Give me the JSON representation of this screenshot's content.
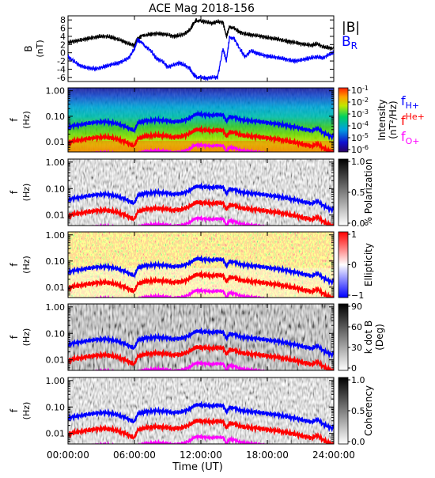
{
  "title": "ACE Mag 2018-156",
  "xlabel": "Time (UT)",
  "xticks": [
    "00:00:00",
    "06:00:00",
    "12:00:00",
    "18:00:00",
    "24:00:00"
  ],
  "colors": {
    "blue": "#0000ff",
    "red": "#ff0000",
    "magenta": "#ff00ff",
    "black": "#000000"
  },
  "chart_data": [
    {
      "type": "line",
      "panel": "magnetic-field",
      "xlim": [
        0,
        24
      ],
      "ylim": [
        -7,
        9
      ],
      "ylabel": "B",
      "yunit": "(nT)",
      "yticks": [
        "8",
        "6",
        "4",
        "2",
        "0",
        "-2",
        "-4",
        "-6"
      ],
      "legend": [
        {
          "label": "|B|",
          "color": "#000000"
        },
        {
          "label": "B",
          "sub": "R",
          "color": "#0000ff"
        }
      ],
      "series": [
        {
          "name": "|B|",
          "x": [
            0,
            0.5,
            1,
            1.5,
            2,
            2.5,
            3,
            3.5,
            4,
            4.5,
            5,
            5.5,
            6,
            6.3,
            6.6,
            7,
            7.5,
            8,
            8.5,
            9,
            9.5,
            10,
            10.5,
            11,
            11.3,
            11.6,
            12,
            12.5,
            13,
            13.5,
            14,
            14.3,
            14.6,
            15,
            15.5,
            16,
            16.5,
            17,
            17.5,
            18,
            18.5,
            19,
            19.5,
            20,
            20.5,
            21,
            21.5,
            22,
            22.5,
            23,
            23.5,
            24
          ],
          "values": [
            2.5,
            2.8,
            3.0,
            3.3,
            3.6,
            3.8,
            4.0,
            4.0,
            3.7,
            3.3,
            2.8,
            2.2,
            1.8,
            3.5,
            3.9,
            4.3,
            4.5,
            4.7,
            4.6,
            4.4,
            4.0,
            4.2,
            4.6,
            5.5,
            7.0,
            8.0,
            7.7,
            7.5,
            7.2,
            7.6,
            7.4,
            4.0,
            6.5,
            6.0,
            5.0,
            4.6,
            4.4,
            4.2,
            4.0,
            3.7,
            3.5,
            3.3,
            3.0,
            2.7,
            2.5,
            2.2,
            2.0,
            1.8,
            2.2,
            1.5,
            1.2,
            1.0
          ]
        },
        {
          "name": "B_R",
          "x": [
            0,
            0.5,
            1,
            1.5,
            2,
            2.5,
            3,
            3.5,
            4,
            4.5,
            5,
            5.5,
            6,
            6.3,
            6.6,
            7,
            7.5,
            8,
            8.5,
            9,
            9.5,
            10,
            10.5,
            11,
            11.3,
            11.6,
            12,
            12.5,
            13,
            13.5,
            14,
            14.3,
            14.6,
            15,
            15.5,
            16,
            16.5,
            17,
            17.5,
            18,
            18.5,
            19,
            19.5,
            20,
            20.5,
            21,
            21.5,
            22,
            22.5,
            23,
            23.5,
            24
          ],
          "values": [
            -1.0,
            -2.0,
            -3.0,
            -3.5,
            -3.8,
            -3.9,
            -3.6,
            -3.2,
            -2.8,
            -2.5,
            -2.0,
            -1.2,
            1.0,
            3.2,
            2.5,
            1.5,
            0.5,
            -1.5,
            -2.0,
            -3.5,
            -3.0,
            -2.5,
            -3.0,
            -3.8,
            -5.2,
            -5.8,
            -6.0,
            -6.2,
            -6.0,
            -6.0,
            1.0,
            -2.0,
            4.0,
            3.5,
            1.0,
            -1.0,
            0.5,
            0.0,
            -0.5,
            -0.8,
            -1.0,
            -1.2,
            -1.5,
            -1.8,
            -2.0,
            -1.8,
            -1.5,
            -1.2,
            -1.0,
            -1.3,
            -0.5,
            0.0
          ]
        }
      ]
    },
    {
      "type": "heatmap",
      "panel": "intensity",
      "ylabel": "f",
      "yunit": "(Hz)",
      "yscale": "log",
      "ylim": [
        0.004,
        1.3
      ],
      "yticks": [
        "1.00",
        "0.10",
        "0.01"
      ],
      "colorbar": {
        "label": "Intensity",
        "unit": "(nT²/Hz)",
        "ticks": [
          "10",
          "10",
          "10",
          "10",
          "10",
          "10"
        ],
        "exponents": [
          "-1",
          "-2",
          "-3",
          "-4",
          "-5",
          "-6"
        ]
      },
      "legend": [
        {
          "label": "f",
          "sub": "H+",
          "color": "#0000ff"
        },
        {
          "label": "f",
          "sup": "He+",
          "color": "#ff0000"
        },
        {
          "label": "f",
          "sub": "O+",
          "color": "#ff00ff"
        }
      ]
    },
    {
      "type": "heatmap",
      "panel": "polarization",
      "ylabel": "f",
      "yunit": "(Hz)",
      "yscale": "log",
      "ylim": [
        0.004,
        1.3
      ],
      "yticks": [
        "1.00",
        "0.10",
        "0.01"
      ],
      "colorbar": {
        "label": "% Polarization",
        "ticks": [
          "1.0",
          "0.5",
          "0.0"
        ]
      }
    },
    {
      "type": "heatmap",
      "panel": "ellipticity",
      "ylabel": "f",
      "yunit": "(Hz)",
      "yscale": "log",
      "ylim": [
        0.004,
        1.3
      ],
      "yticks": [
        "1.00",
        "0.10",
        "0.01"
      ],
      "colorbar": {
        "label": "Ellipticity",
        "ticks": [
          "1",
          "0",
          "−1"
        ]
      }
    },
    {
      "type": "heatmap",
      "panel": "k-dot-b",
      "ylabel": "f",
      "yunit": "(Hz)",
      "yscale": "log",
      "ylim": [
        0.004,
        1.3
      ],
      "yticks": [
        "1.00",
        "0.10",
        "0.01"
      ],
      "colorbar": {
        "label": "k dot B",
        "unit": "(Deg)",
        "ticks": [
          "90",
          "60",
          "30",
          "0"
        ]
      }
    },
    {
      "type": "heatmap",
      "panel": "coherency",
      "ylabel": "f",
      "yunit": "(Hz)",
      "yscale": "log",
      "ylim": [
        0.004,
        1.3
      ],
      "yticks": [
        "1.00",
        "0.10",
        "0.01"
      ],
      "colorbar": {
        "label": "Coherency",
        "ticks": [
          "1.0",
          "0.5",
          "0.0"
        ]
      }
    }
  ],
  "gyrofrequency": {
    "x": [
      0,
      0.5,
      1,
      1.5,
      2,
      2.5,
      3,
      3.5,
      4,
      4.5,
      5,
      5.5,
      6,
      6.3,
      6.6,
      7,
      7.5,
      8,
      8.5,
      9,
      9.5,
      10,
      10.5,
      11,
      11.3,
      11.6,
      12,
      12.5,
      13,
      13.5,
      14,
      14.3,
      14.6,
      15,
      15.5,
      16,
      16.5,
      17,
      17.5,
      18,
      18.5,
      19,
      19.5,
      20,
      20.5,
      21,
      21.5,
      22,
      22.5,
      23,
      23.5,
      24
    ],
    "fH": [
      0.038,
      0.043,
      0.046,
      0.05,
      0.055,
      0.058,
      0.061,
      0.061,
      0.056,
      0.05,
      0.043,
      0.034,
      0.027,
      0.053,
      0.06,
      0.066,
      0.069,
      0.072,
      0.07,
      0.067,
      0.061,
      0.064,
      0.07,
      0.084,
      0.107,
      0.122,
      0.117,
      0.114,
      0.11,
      0.116,
      0.113,
      0.061,
      0.099,
      0.091,
      0.076,
      0.07,
      0.067,
      0.064,
      0.061,
      0.056,
      0.053,
      0.05,
      0.046,
      0.041,
      0.038,
      0.034,
      0.03,
      0.027,
      0.034,
      0.023,
      0.018,
      0.015
    ]
  }
}
